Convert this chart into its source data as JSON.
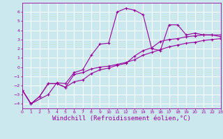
{
  "background_color": "#cce8ef",
  "grid_color": "#ffffff",
  "line_color": "#990099",
  "marker": "+",
  "xlabel": "Windchill (Refroidissement éolien,°C)",
  "xlabel_fontsize": 6.5,
  "xlim": [
    0,
    23
  ],
  "ylim": [
    -4.5,
    7.0
  ],
  "xticks": [
    0,
    1,
    2,
    3,
    4,
    5,
    6,
    7,
    8,
    9,
    10,
    11,
    12,
    13,
    14,
    15,
    16,
    17,
    18,
    19,
    20,
    21,
    22,
    23
  ],
  "yticks": [
    -4,
    -3,
    -2,
    -1,
    0,
    1,
    2,
    3,
    4,
    5,
    6
  ],
  "series1_x": [
    0,
    1,
    2,
    3,
    4,
    5,
    6,
    7,
    8,
    9,
    10,
    11,
    12,
    13,
    14,
    15,
    16,
    17,
    18,
    19,
    20,
    21,
    22,
    23
  ],
  "series1_y": [
    -2.5,
    -4.0,
    -3.2,
    -1.8,
    -1.8,
    -2.2,
    -0.8,
    -0.6,
    -0.2,
    0.0,
    0.1,
    0.3,
    0.5,
    0.8,
    1.3,
    1.6,
    1.9,
    2.2,
    2.4,
    2.6,
    2.7,
    2.9,
    3.0,
    3.1
  ],
  "series2_x": [
    0,
    1,
    3,
    4,
    5,
    6,
    7,
    8,
    9,
    10,
    11,
    12,
    13,
    14,
    15,
    16,
    17,
    18,
    19,
    20,
    21,
    22,
    23
  ],
  "series2_y": [
    -2.5,
    -4.0,
    -3.0,
    -1.7,
    -1.8,
    -0.6,
    -0.3,
    1.3,
    2.5,
    2.6,
    6.0,
    6.4,
    6.2,
    5.7,
    2.0,
    1.8,
    4.6,
    4.6,
    3.5,
    3.7,
    3.5,
    3.5,
    3.5
  ],
  "series3_x": [
    0,
    1,
    2,
    3,
    4,
    5,
    6,
    7,
    8,
    9,
    10,
    11,
    12,
    13,
    14,
    15,
    16,
    17,
    18,
    19,
    20,
    21,
    22,
    23
  ],
  "series3_y": [
    -2.5,
    -4.0,
    -3.2,
    -1.8,
    -1.8,
    -2.2,
    -1.6,
    -1.4,
    -0.7,
    -0.3,
    -0.1,
    0.2,
    0.4,
    1.2,
    1.8,
    2.1,
    2.8,
    3.0,
    3.1,
    3.3,
    3.4,
    3.5,
    3.5,
    3.3
  ]
}
